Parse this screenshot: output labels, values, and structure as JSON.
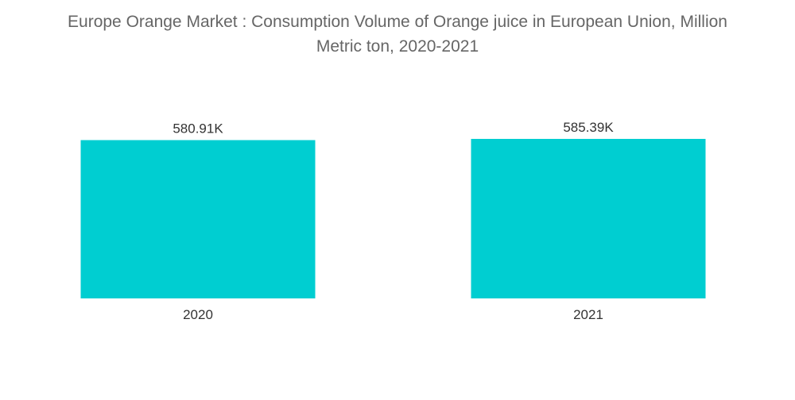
{
  "chart_data": {
    "type": "bar",
    "title_line1": "Europe Orange Market : Consumption Volume of Orange juice in European Union, Million",
    "title_line2": "Metric ton, 2020-2021",
    "categories": [
      "2020",
      "2021"
    ],
    "values": [
      580.91,
      585.39
    ],
    "value_labels": [
      "580.91K",
      "585.39K"
    ],
    "xlabel": "",
    "ylabel": "",
    "ylim": [
      0,
      585.39
    ],
    "grid": false,
    "legend": "none",
    "bar_color": "#00CED1"
  }
}
